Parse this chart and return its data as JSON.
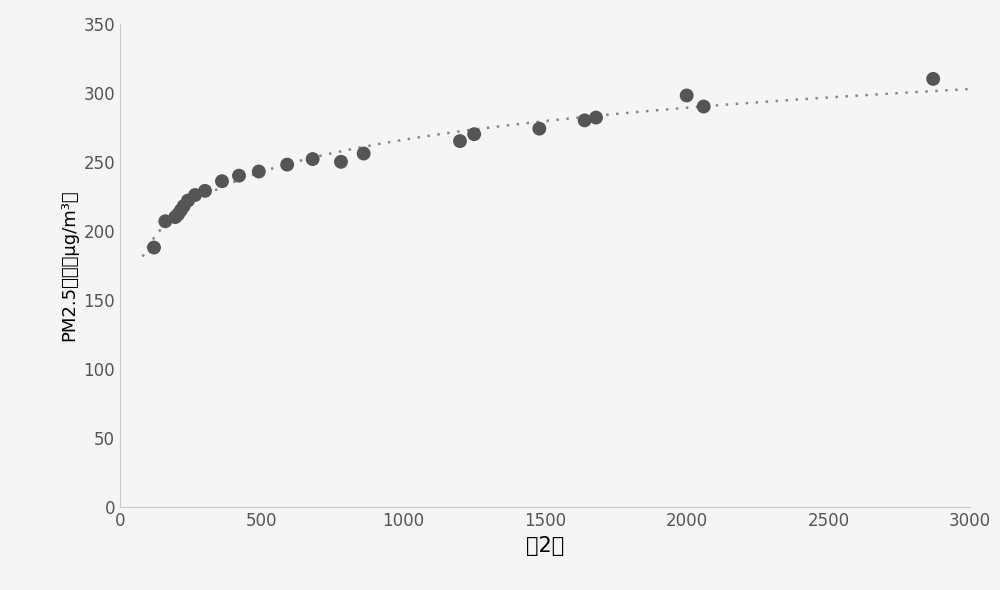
{
  "x_data": [
    120,
    160,
    195,
    205,
    215,
    225,
    240,
    265,
    300,
    360,
    420,
    490,
    590,
    680,
    780,
    860,
    1200,
    1250,
    1480,
    1640,
    1680,
    2000,
    2060,
    2870
  ],
  "y_data": [
    188,
    207,
    210,
    212,
    215,
    218,
    222,
    226,
    229,
    236,
    240,
    243,
    248,
    252,
    250,
    256,
    265,
    270,
    274,
    280,
    282,
    298,
    290,
    310
  ],
  "xlabel": "頇2数",
  "ylabel": "PM2.5浓度（μg/m³）",
  "xlim": [
    0,
    3000
  ],
  "ylim": [
    0,
    350
  ],
  "xticks": [
    0,
    500,
    1000,
    1500,
    2000,
    2500,
    3000
  ],
  "yticks": [
    0,
    50,
    100,
    150,
    200,
    250,
    300,
    350
  ],
  "dot_color": "#555555",
  "line_color": "#888888",
  "bg_color": "#f5f5f5",
  "dot_size": 100,
  "line_width": 1.8,
  "xlabel_fontsize": 15,
  "ylabel_fontsize": 13,
  "tick_fontsize": 12
}
